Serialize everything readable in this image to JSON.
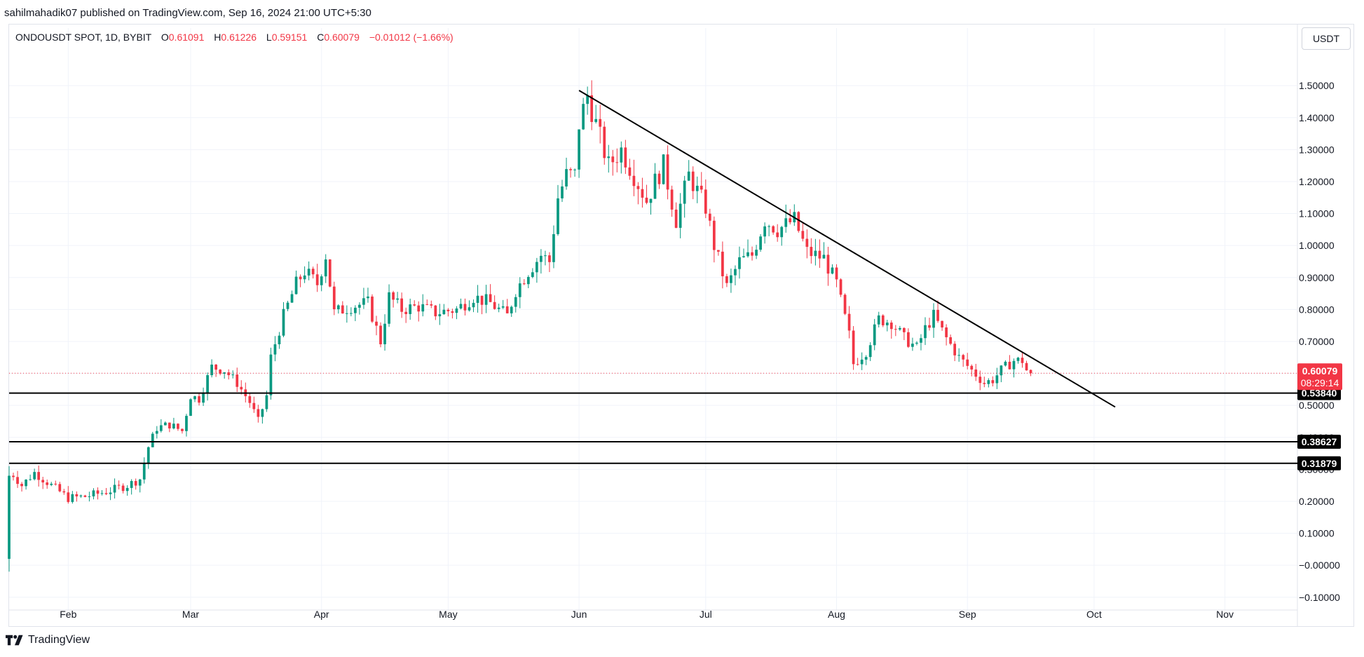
{
  "header": {
    "published_text": "sahilmahadik07 published on TradingView.com, Sep 16, 2024 21:00 UTC+5:30"
  },
  "legend": {
    "symbol": "ONDOUSDT SPOT, 1D, BYBIT",
    "open_label": "O",
    "open": "0.61091",
    "high_label": "H",
    "high": "0.61226",
    "low_label": "L",
    "low": "0.59151",
    "close_label": "C",
    "close": "0.60079",
    "change": "−0.01012 (−1.66%)"
  },
  "currency_button": "USDT",
  "footer": {
    "brand": "TradingView"
  },
  "colors": {
    "up": "#089981",
    "down": "#f23645",
    "line": "#000000",
    "grid": "#f0f3fa"
  },
  "chart_data": {
    "type": "candlestick",
    "y_ticks": [
      "1.50000",
      "1.40000",
      "1.30000",
      "1.20000",
      "1.10000",
      "1.00000",
      "0.90000",
      "0.80000",
      "0.70000",
      "0.60000",
      "0.50000",
      "0.40000",
      "0.30000",
      "0.20000",
      "0.10000",
      "−0.00000",
      "−0.10000"
    ],
    "y_range": [
      -0.14,
      1.61
    ],
    "x_ticks": [
      "Feb",
      "Mar",
      "Apr",
      "May",
      "Jun",
      "Jul",
      "Aug",
      "Sep",
      "Oct",
      "Nov"
    ],
    "x_range": [
      "2024-01-18",
      "2024-11-18"
    ],
    "last_price": {
      "value": 0.60079,
      "label": "0.60079",
      "countdown": "08:29:14"
    },
    "horizontal_levels": [
      {
        "value": 0.5384,
        "label": "0.53840"
      },
      {
        "value": 0.38627,
        "label": "0.38627"
      },
      {
        "value": 0.31879,
        "label": "0.31879"
      }
    ],
    "trendline": {
      "start": {
        "date": "2024-06-01",
        "price": 1.485
      },
      "end": {
        "date": "2024-10-06",
        "price": 0.495
      }
    },
    "price_path": [
      [
        "2024-01-18",
        0.3
      ],
      [
        "2024-01-21",
        0.25
      ],
      [
        "2024-01-24",
        0.29
      ],
      [
        "2024-01-28",
        0.25
      ],
      [
        "2024-02-01",
        0.21
      ],
      [
        "2024-02-05",
        0.215
      ],
      [
        "2024-02-10",
        0.23
      ],
      [
        "2024-02-15",
        0.25
      ],
      [
        "2024-02-18",
        0.27
      ],
      [
        "2024-02-20",
        0.37
      ],
      [
        "2024-02-22",
        0.43
      ],
      [
        "2024-02-25",
        0.44
      ],
      [
        "2024-02-28",
        0.42
      ],
      [
        "2024-03-01",
        0.53
      ],
      [
        "2024-03-03",
        0.52
      ],
      [
        "2024-03-06",
        0.62
      ],
      [
        "2024-03-09",
        0.61
      ],
      [
        "2024-03-12",
        0.57
      ],
      [
        "2024-03-15",
        0.51
      ],
      [
        "2024-03-17",
        0.45
      ],
      [
        "2024-03-19",
        0.53
      ],
      [
        "2024-03-20",
        0.65
      ],
      [
        "2024-03-23",
        0.78
      ],
      [
        "2024-03-26",
        0.88
      ],
      [
        "2024-03-28",
        0.92
      ],
      [
        "2024-03-31",
        0.88
      ],
      [
        "2024-04-02",
        0.97
      ],
      [
        "2024-04-04",
        0.79
      ],
      [
        "2024-04-08",
        0.81
      ],
      [
        "2024-04-12",
        0.82
      ],
      [
        "2024-04-15",
        0.7
      ],
      [
        "2024-04-17",
        0.84
      ],
      [
        "2024-04-20",
        0.8
      ],
      [
        "2024-04-24",
        0.81
      ],
      [
        "2024-04-28",
        0.79
      ],
      [
        "2024-05-03",
        0.8
      ],
      [
        "2024-05-07",
        0.84
      ],
      [
        "2024-05-11",
        0.82
      ],
      [
        "2024-05-15",
        0.78
      ],
      [
        "2024-05-17",
        0.86
      ],
      [
        "2024-05-20",
        0.92
      ],
      [
        "2024-05-23",
        0.97
      ],
      [
        "2024-05-25",
        0.95
      ],
      [
        "2024-05-27",
        1.15
      ],
      [
        "2024-05-29",
        1.22
      ],
      [
        "2024-05-31",
        1.22
      ],
      [
        "2024-06-01",
        1.38
      ],
      [
        "2024-06-03",
        1.47
      ],
      [
        "2024-06-05",
        1.38
      ],
      [
        "2024-06-08",
        1.25
      ],
      [
        "2024-06-11",
        1.3
      ],
      [
        "2024-06-14",
        1.22
      ],
      [
        "2024-06-17",
        1.14
      ],
      [
        "2024-06-19",
        1.2
      ],
      [
        "2024-06-21",
        1.25
      ],
      [
        "2024-06-24",
        1.08
      ],
      [
        "2024-06-27",
        1.22
      ],
      [
        "2024-07-01",
        1.12
      ],
      [
        "2024-07-03",
        1.0
      ],
      [
        "2024-07-06",
        0.87
      ],
      [
        "2024-07-09",
        0.95
      ],
      [
        "2024-07-12",
        0.97
      ],
      [
        "2024-07-15",
        1.08
      ],
      [
        "2024-07-18",
        1.05
      ],
      [
        "2024-07-22",
        1.08
      ],
      [
        "2024-07-25",
        0.98
      ],
      [
        "2024-07-29",
        0.96
      ],
      [
        "2024-08-01",
        0.88
      ],
      [
        "2024-08-04",
        0.72
      ],
      [
        "2024-08-05",
        0.63
      ],
      [
        "2024-08-08",
        0.67
      ],
      [
        "2024-08-11",
        0.77
      ],
      [
        "2024-08-14",
        0.76
      ],
      [
        "2024-08-17",
        0.71
      ],
      [
        "2024-08-20",
        0.68
      ],
      [
        "2024-08-22",
        0.74
      ],
      [
        "2024-08-24",
        0.78
      ],
      [
        "2024-08-27",
        0.71
      ],
      [
        "2024-08-30",
        0.65
      ],
      [
        "2024-09-02",
        0.61
      ],
      [
        "2024-09-05",
        0.57
      ],
      [
        "2024-09-07",
        0.58
      ],
      [
        "2024-09-09",
        0.61
      ],
      [
        "2024-09-12",
        0.64
      ],
      [
        "2024-09-14",
        0.64
      ],
      [
        "2024-09-15",
        0.61
      ],
      [
        "2024-09-16",
        0.6
      ]
    ]
  }
}
